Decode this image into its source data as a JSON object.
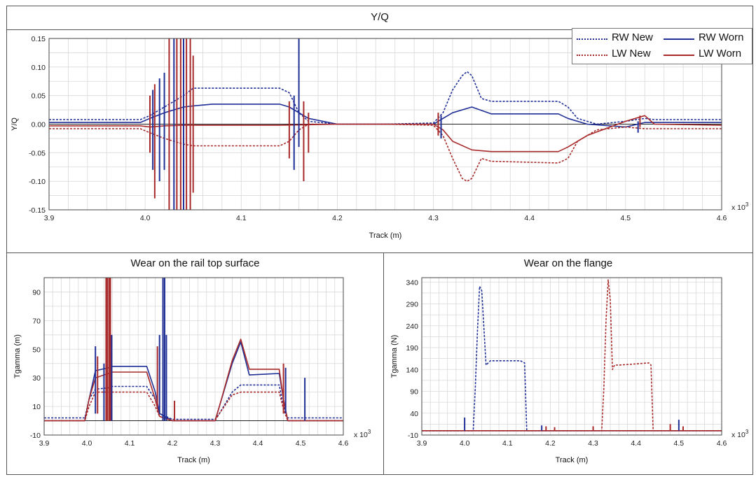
{
  "panels": {
    "top": {
      "title": "Y/Q"
    },
    "left": {
      "title": "Wear on the rail top surface"
    },
    "right": {
      "title": "Wear on the flange"
    }
  },
  "colors": {
    "rw": "#1f2f96",
    "lw": "#a82a2a",
    "grid": "#d9d9d9",
    "frame": "#555555"
  },
  "legend": [
    {
      "label": "RW New",
      "style": "dotted",
      "color": "#1f2f96"
    },
    {
      "label": "RW Worn",
      "style": "solid",
      "color": "#1f2f96"
    },
    {
      "label": "LW New",
      "style": "dotted",
      "color": "#a82a2a"
    },
    {
      "label": "LW Worn",
      "style": "solid",
      "color": "#a82a2a"
    }
  ],
  "chart_data": [
    {
      "type": "line",
      "title": "Y/Q",
      "xlabel": "Track (m)",
      "ylabel": "Y/Q",
      "x_multiplier": "x 10^3",
      "xlim": [
        3.9,
        4.6
      ],
      "ylim": [
        -0.15,
        0.15
      ],
      "xticks": [
        "3.9",
        "4.0",
        "4.1",
        "4.2",
        "4.3",
        "4.4",
        "4.5",
        "4.6"
      ],
      "yticks": [
        "0.15",
        "0.10",
        "0.05",
        "0.00",
        "-0.05",
        "-0.10",
        "-0.15"
      ],
      "series": [
        {
          "name": "RW New",
          "style": "dotted",
          "color": "#1f2f96",
          "x": [
            3.9,
            3.995,
            4.005,
            4.02,
            4.04,
            4.05,
            4.14,
            4.15,
            4.16,
            4.17,
            4.2,
            4.25,
            4.3,
            4.31,
            4.32,
            4.33,
            4.335,
            4.34,
            4.35,
            4.36,
            4.43,
            4.44,
            4.45,
            4.47,
            4.5,
            4.52,
            4.53,
            4.6
          ],
          "y": [
            0.008,
            0.008,
            0.015,
            0.03,
            0.05,
            0.063,
            0.063,
            0.055,
            0.02,
            0.005,
            0.0,
            0.0,
            0.002,
            0.02,
            0.06,
            0.085,
            0.092,
            0.085,
            0.045,
            0.04,
            0.04,
            0.03,
            0.01,
            0.0,
            0.005,
            0.01,
            0.008,
            0.008
          ]
        },
        {
          "name": "RW Worn",
          "style": "solid",
          "color": "#1f2f96",
          "x": [
            3.9,
            3.995,
            4.005,
            4.02,
            4.04,
            4.05,
            4.07,
            4.14,
            4.15,
            4.17,
            4.2,
            4.25,
            4.3,
            4.31,
            4.32,
            4.34,
            4.36,
            4.43,
            4.44,
            4.46,
            4.5,
            4.52,
            4.53,
            4.6
          ],
          "y": [
            0.003,
            0.003,
            0.01,
            0.02,
            0.03,
            0.032,
            0.035,
            0.035,
            0.03,
            0.01,
            0.0,
            0.0,
            0.0,
            0.01,
            0.02,
            0.03,
            0.018,
            0.018,
            0.01,
            0.0,
            -0.005,
            0.003,
            0.003,
            0.003
          ]
        },
        {
          "name": "LW New",
          "style": "dotted",
          "color": "#a82a2a",
          "x": [
            3.9,
            3.995,
            4.005,
            4.02,
            4.04,
            4.05,
            4.14,
            4.15,
            4.16,
            4.17,
            4.2,
            4.25,
            4.3,
            4.31,
            4.32,
            4.33,
            4.335,
            4.34,
            4.35,
            4.36,
            4.43,
            4.44,
            4.45,
            4.47,
            4.5,
            4.52,
            4.53,
            4.6
          ],
          "y": [
            -0.008,
            -0.008,
            -0.015,
            -0.025,
            -0.035,
            -0.038,
            -0.038,
            -0.03,
            -0.01,
            0.0,
            0.0,
            0.0,
            -0.002,
            -0.02,
            -0.06,
            -0.095,
            -0.1,
            -0.095,
            -0.06,
            -0.065,
            -0.068,
            -0.06,
            -0.03,
            -0.01,
            -0.005,
            -0.008,
            -0.008,
            -0.008
          ]
        },
        {
          "name": "LW Worn",
          "style": "solid",
          "color": "#a82a2a",
          "x": [
            3.9,
            3.995,
            4.005,
            4.02,
            4.04,
            4.05,
            4.14,
            4.17,
            4.2,
            4.25,
            4.3,
            4.31,
            4.32,
            4.34,
            4.36,
            4.43,
            4.44,
            4.46,
            4.5,
            4.52,
            4.53,
            4.6
          ],
          "y": [
            -0.003,
            -0.003,
            -0.005,
            -0.003,
            -0.002,
            -0.002,
            -0.002,
            -0.001,
            0.0,
            0.0,
            0.0,
            -0.01,
            -0.03,
            -0.045,
            -0.048,
            -0.048,
            -0.04,
            -0.02,
            0.005,
            0.015,
            0.0,
            -0.002
          ]
        }
      ],
      "spikes": [
        {
          "x": 4.005,
          "y0": -0.05,
          "y1": 0.05,
          "color": "#a82a2a"
        },
        {
          "x": 4.008,
          "y0": -0.08,
          "y1": 0.06,
          "color": "#1f2f96"
        },
        {
          "x": 4.01,
          "y0": -0.13,
          "y1": 0.07,
          "color": "#a82a2a"
        },
        {
          "x": 4.015,
          "y0": -0.1,
          "y1": 0.08,
          "color": "#1f2f96"
        },
        {
          "x": 4.02,
          "y0": -0.08,
          "y1": 0.09,
          "color": "#1f2f96"
        },
        {
          "x": 4.025,
          "y0": -0.15,
          "y1": 0.15,
          "color": "#a82a2a"
        },
        {
          "x": 4.03,
          "y0": -0.15,
          "y1": 0.15,
          "color": "#1f2f96"
        },
        {
          "x": 4.033,
          "y0": -0.15,
          "y1": 0.15,
          "color": "#a82a2a"
        },
        {
          "x": 4.037,
          "y0": -0.15,
          "y1": 0.15,
          "color": "#a82a2a"
        },
        {
          "x": 4.04,
          "y0": -0.15,
          "y1": 0.15,
          "color": "#1f2f96"
        },
        {
          "x": 4.043,
          "y0": -0.15,
          "y1": 0.15,
          "color": "#a82a2a"
        },
        {
          "x": 4.047,
          "y0": -0.15,
          "y1": 0.15,
          "color": "#a82a2a"
        },
        {
          "x": 4.05,
          "y0": -0.12,
          "y1": 0.12,
          "color": "#a82a2a"
        },
        {
          "x": 4.15,
          "y0": -0.06,
          "y1": 0.04,
          "color": "#a82a2a"
        },
        {
          "x": 4.155,
          "y0": -0.08,
          "y1": 0.05,
          "color": "#1f2f96"
        },
        {
          "x": 4.16,
          "y0": -0.04,
          "y1": 0.15,
          "color": "#1f2f96"
        },
        {
          "x": 4.165,
          "y0": -0.1,
          "y1": 0.04,
          "color": "#a82a2a"
        },
        {
          "x": 4.17,
          "y0": -0.05,
          "y1": 0.02,
          "color": "#a82a2a"
        },
        {
          "x": 4.305,
          "y0": -0.02,
          "y1": 0.02,
          "color": "#a82a2a"
        },
        {
          "x": 4.308,
          "y0": -0.025,
          "y1": 0.015,
          "color": "#1f2f96"
        },
        {
          "x": 4.515,
          "y0": -0.005,
          "y1": 0.015,
          "color": "#a82a2a"
        },
        {
          "x": 4.513,
          "y0": -0.015,
          "y1": 0.005,
          "color": "#1f2f96"
        }
      ]
    },
    {
      "type": "line",
      "title": "Wear on the rail top surface",
      "xlabel": "Track (m)",
      "ylabel": "Tgamma (m)",
      "x_multiplier": "x 10^3",
      "xlim": [
        3.9,
        4.6
      ],
      "ylim": [
        -10,
        100
      ],
      "xticks": [
        "3.9",
        "4.0",
        "4.1",
        "4.2",
        "4.3",
        "4.4",
        "4.5",
        "4.6"
      ],
      "yticks": [
        "90",
        "70",
        "50",
        "30",
        "10",
        "-10"
      ],
      "series": [
        {
          "name": "RW New",
          "style": "dotted",
          "color": "#1f2f96",
          "x": [
            3.9,
            3.995,
            4.005,
            4.02,
            4.05,
            4.06,
            4.14,
            4.16,
            4.17,
            4.2,
            4.25,
            4.3,
            4.31,
            4.34,
            4.36,
            4.38,
            4.45,
            4.46,
            4.47,
            4.6
          ],
          "y": [
            2,
            2,
            15,
            22,
            23,
            24,
            24,
            15,
            5,
            1,
            1,
            1,
            5,
            20,
            25,
            25,
            25,
            10,
            2,
            2
          ]
        },
        {
          "name": "RW Worn",
          "style": "solid",
          "color": "#1f2f96",
          "x": [
            3.9,
            3.995,
            4.005,
            4.02,
            4.05,
            4.06,
            4.14,
            4.16,
            4.17,
            4.2,
            4.25,
            4.3,
            4.31,
            4.34,
            4.36,
            4.38,
            4.45,
            4.46,
            4.47,
            4.6
          ],
          "y": [
            0,
            0,
            15,
            35,
            37,
            38,
            38,
            20,
            5,
            0,
            0,
            0,
            10,
            40,
            55,
            32,
            33,
            15,
            0,
            0
          ]
        },
        {
          "name": "LW New",
          "style": "dotted",
          "color": "#a82a2a",
          "x": [
            3.9,
            3.995,
            4.005,
            4.02,
            4.05,
            4.06,
            4.14,
            4.16,
            4.17,
            4.2,
            4.25,
            4.3,
            4.31,
            4.34,
            4.36,
            4.38,
            4.45,
            4.46,
            4.47,
            4.6
          ],
          "y": [
            0,
            0,
            10,
            20,
            20,
            20,
            20,
            10,
            3,
            0,
            0,
            0,
            5,
            18,
            20,
            20,
            20,
            8,
            0,
            0
          ]
        },
        {
          "name": "LW Worn",
          "style": "solid",
          "color": "#a82a2a",
          "x": [
            3.9,
            3.995,
            4.005,
            4.02,
            4.05,
            4.06,
            4.14,
            4.16,
            4.17,
            4.2,
            4.25,
            4.3,
            4.31,
            4.34,
            4.36,
            4.38,
            4.45,
            4.46,
            4.47,
            4.6
          ],
          "y": [
            0,
            0,
            15,
            30,
            33,
            34,
            34,
            15,
            3,
            0,
            0,
            0,
            10,
            42,
            57,
            36,
            36,
            15,
            0,
            0
          ]
        }
      ],
      "spikes": [
        {
          "x": 4.02,
          "y0": 5,
          "y1": 52,
          "color": "#1f2f96"
        },
        {
          "x": 4.025,
          "y0": 5,
          "y1": 45,
          "color": "#a82a2a"
        },
        {
          "x": 4.04,
          "y0": 0,
          "y1": 40,
          "color": "#1f2f96"
        },
        {
          "x": 4.045,
          "y0": 0,
          "y1": 100,
          "color": "#a82a2a"
        },
        {
          "x": 4.048,
          "y0": 0,
          "y1": 100,
          "color": "#a82a2a"
        },
        {
          "x": 4.052,
          "y0": 0,
          "y1": 100,
          "color": "#a82a2a"
        },
        {
          "x": 4.055,
          "y0": 0,
          "y1": 100,
          "color": "#a82a2a"
        },
        {
          "x": 4.058,
          "y0": 0,
          "y1": 60,
          "color": "#1f2f96"
        },
        {
          "x": 4.165,
          "y0": 10,
          "y1": 52,
          "color": "#a82a2a"
        },
        {
          "x": 4.17,
          "y0": 5,
          "y1": 60,
          "color": "#1f2f96"
        },
        {
          "x": 4.178,
          "y0": 0,
          "y1": 100,
          "color": "#1f2f96"
        },
        {
          "x": 4.182,
          "y0": 0,
          "y1": 100,
          "color": "#1f2f96"
        },
        {
          "x": 4.186,
          "y0": 0,
          "y1": 60,
          "color": "#1f2f96"
        },
        {
          "x": 4.205,
          "y0": 0,
          "y1": 14,
          "color": "#a82a2a"
        },
        {
          "x": 4.46,
          "y0": 5,
          "y1": 40,
          "color": "#a82a2a"
        },
        {
          "x": 4.465,
          "y0": 5,
          "y1": 37,
          "color": "#1f2f96"
        },
        {
          "x": 4.51,
          "y0": 0,
          "y1": 30,
          "color": "#1f2f96"
        }
      ]
    },
    {
      "type": "line",
      "title": "Wear on the flange",
      "xlabel": "Track (m)",
      "ylabel": "Tgamma (N)",
      "x_multiplier": "x 10^3",
      "xlim": [
        3.9,
        4.6
      ],
      "ylim": [
        -10,
        350
      ],
      "xticks": [
        "3.9",
        "4.0",
        "4.1",
        "4.2",
        "4.3",
        "4.4",
        "4.5",
        "4.6"
      ],
      "yticks": [
        "340",
        "290",
        "240",
        "190",
        "140",
        "90",
        "40",
        "-10"
      ],
      "series": [
        {
          "name": "RW New",
          "style": "dotted",
          "color": "#1f2f96",
          "x": [
            3.9,
            4.02,
            4.025,
            4.03,
            4.035,
            4.04,
            4.05,
            4.06,
            4.07,
            4.13,
            4.14,
            4.145,
            4.6
          ],
          "y": [
            0,
            0,
            100,
            230,
            330,
            320,
            150,
            160,
            160,
            160,
            155,
            0,
            0
          ]
        },
        {
          "name": "RW Worn",
          "style": "solid",
          "color": "#1f2f96",
          "x": [
            3.9,
            4.6
          ],
          "y": [
            0,
            0
          ]
        },
        {
          "name": "LW New",
          "style": "dotted",
          "color": "#a82a2a",
          "x": [
            3.9,
            4.32,
            4.325,
            4.33,
            4.335,
            4.34,
            4.345,
            4.35,
            4.36,
            4.43,
            4.435,
            4.44,
            4.6
          ],
          "y": [
            0,
            0,
            100,
            250,
            345,
            300,
            140,
            150,
            150,
            155,
            150,
            0,
            0
          ]
        },
        {
          "name": "LW Worn",
          "style": "solid",
          "color": "#a82a2a",
          "x": [
            3.9,
            4.6
          ],
          "y": [
            0,
            0
          ]
        }
      ],
      "spikes": [
        {
          "x": 4.0,
          "y0": 0,
          "y1": 30,
          "color": "#1f2f96"
        },
        {
          "x": 4.18,
          "y0": 0,
          "y1": 12,
          "color": "#1f2f96"
        },
        {
          "x": 4.19,
          "y0": 0,
          "y1": 10,
          "color": "#a82a2a"
        },
        {
          "x": 4.21,
          "y0": 0,
          "y1": 8,
          "color": "#a82a2a"
        },
        {
          "x": 4.3,
          "y0": 0,
          "y1": 10,
          "color": "#a82a2a"
        },
        {
          "x": 4.48,
          "y0": 0,
          "y1": 15,
          "color": "#a82a2a"
        },
        {
          "x": 4.5,
          "y0": 0,
          "y1": 25,
          "color": "#1f2f96"
        },
        {
          "x": 4.51,
          "y0": 0,
          "y1": 10,
          "color": "#a82a2a"
        }
      ]
    }
  ]
}
